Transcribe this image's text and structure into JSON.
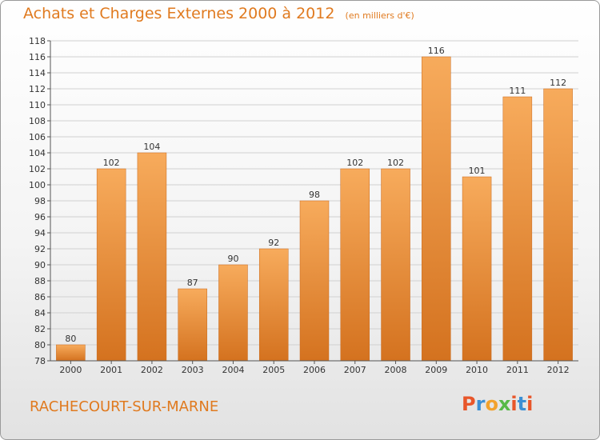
{
  "header": {
    "title": "Achats et Charges Externes 2000 à 2012",
    "subtitle": "(en milliers d'€)"
  },
  "footer": {
    "city": "RACHECOURT-SUR-MARNE",
    "logo_text": "Proxiti",
    "logo_colors": [
      "#e8562a",
      "#3b8fd4",
      "#f2a22c",
      "#58b947",
      "#e8562a",
      "#3b8fd4",
      "#e8562a"
    ]
  },
  "colors": {
    "bar_light": "#f7ab5c",
    "bar_dark": "#d4721f",
    "accent": "#e07a1f",
    "grid": "#d0d0d0",
    "axis": "#555555"
  },
  "chart_data": {
    "type": "bar",
    "categories": [
      "2000",
      "2001",
      "2002",
      "2003",
      "2004",
      "2005",
      "2006",
      "2007",
      "2008",
      "2009",
      "2010",
      "2011",
      "2012"
    ],
    "values": [
      80,
      102,
      104,
      87,
      90,
      92,
      98,
      102,
      102,
      116,
      101,
      111,
      112
    ],
    "ylim": [
      78,
      118
    ],
    "yticks": [
      78,
      80,
      82,
      84,
      86,
      88,
      90,
      92,
      94,
      96,
      98,
      100,
      102,
      104,
      106,
      108,
      110,
      112,
      114,
      116,
      118
    ],
    "grid": true,
    "data_labels": true
  }
}
